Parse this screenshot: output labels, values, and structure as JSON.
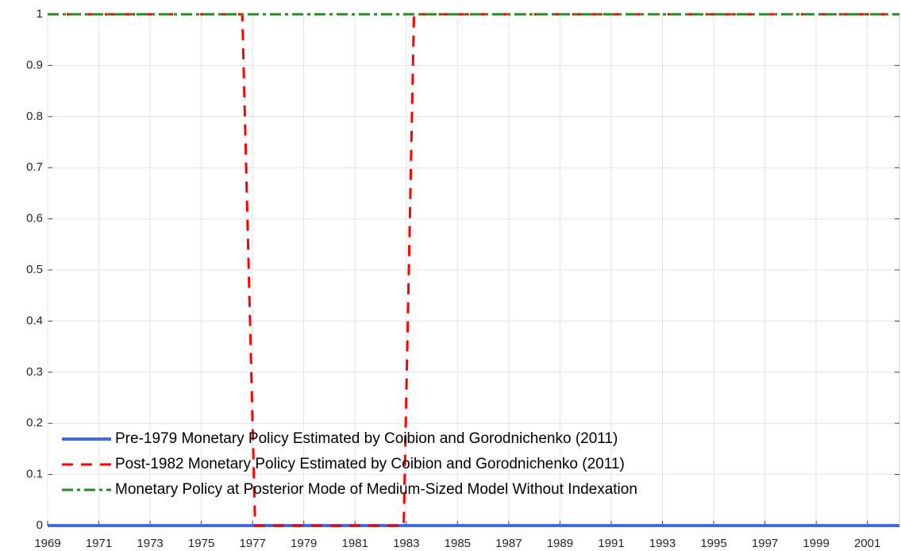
{
  "chart_data": {
    "type": "line",
    "xlim": [
      1969,
      2002.25
    ],
    "xticks": [
      1969,
      1971,
      1973,
      1975,
      1977,
      1979,
      1981,
      1983,
      1985,
      1987,
      1989,
      1991,
      1993,
      1995,
      1997,
      1999,
      2001
    ],
    "ylim": [
      0,
      1
    ],
    "yticks": [
      0,
      0.1,
      0.2,
      0.3,
      0.4,
      0.5,
      0.6,
      0.7,
      0.8,
      0.9,
      1
    ],
    "grid": true,
    "legend": "lower left",
    "series": [
      {
        "name": "Pre-1979  Monetary Policy Estimated by Coibion and Gorodnichenko (2011)",
        "color": "#4169e1",
        "style": "solid",
        "x": [
          1969,
          2002.25
        ],
        "values": [
          0,
          0
        ]
      },
      {
        "name": "Post-1982 Monetary Policy Estimated by Coibion and Gorodnichenko (2011)",
        "color": "#ff0000",
        "style": "dashed",
        "x": [
          1969,
          1976.6,
          1977.1,
          1982.9,
          1983.3,
          2002.25
        ],
        "values": [
          1,
          1,
          0,
          0,
          1,
          1
        ]
      },
      {
        "name": "Monetary Policy at Posterior Mode of Medium-Sized Model Without Indexation",
        "color": "#228b22",
        "style": "dashdot",
        "x": [
          1969,
          2002.25
        ],
        "values": [
          1,
          1
        ]
      }
    ]
  }
}
